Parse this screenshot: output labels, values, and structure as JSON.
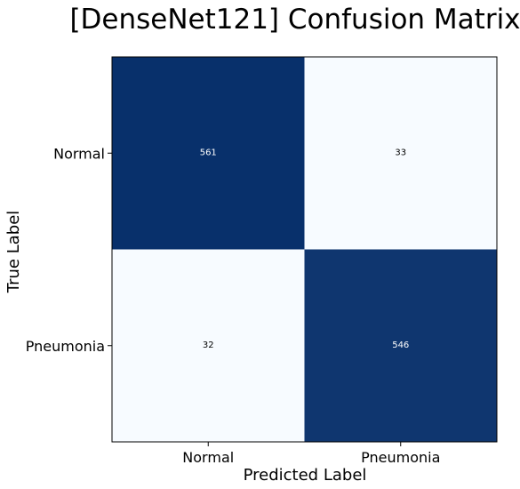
{
  "chart_data": {
    "type": "heatmap",
    "title": "[DenseNet121] Confusion Matrix",
    "xlabel": "Predicted Label",
    "ylabel": "True Label",
    "x_categories": [
      "Normal",
      "Pneumonia"
    ],
    "y_categories": [
      "Normal",
      "Pneumonia"
    ],
    "values": [
      [
        561,
        33
      ],
      [
        32,
        546
      ]
    ],
    "colormap": "Blues",
    "color_low": "#f7fbff",
    "color_high": "#08306b",
    "text_color_dark_cell": "#ffffff",
    "text_color_light_cell": "#000000"
  }
}
